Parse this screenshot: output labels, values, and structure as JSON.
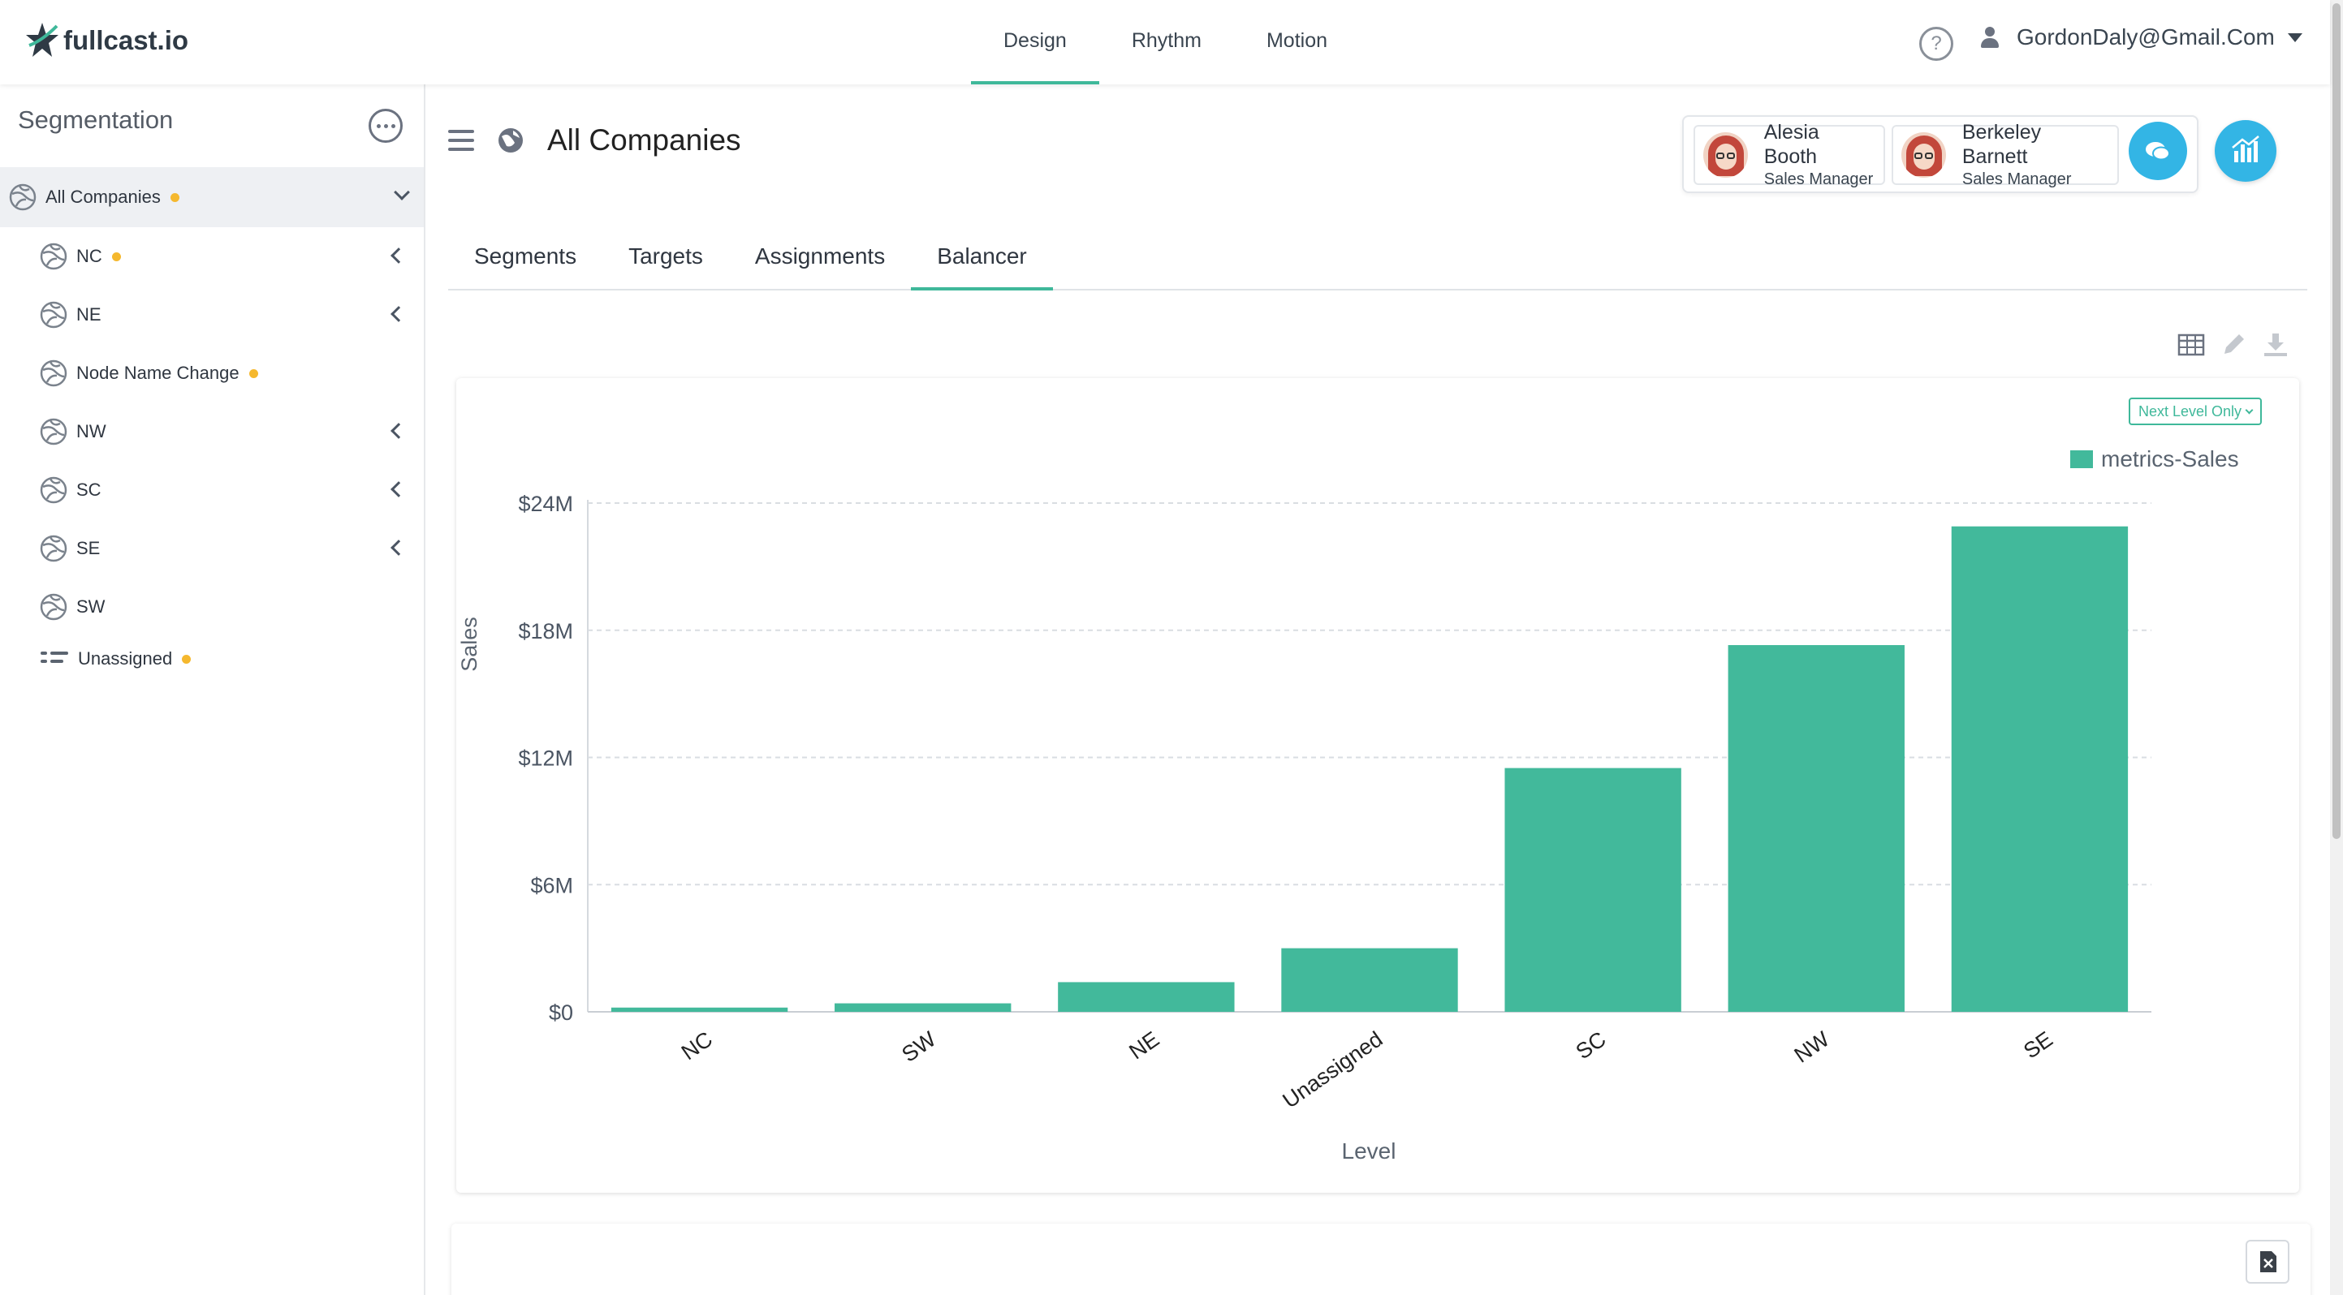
{
  "app": {
    "logo_text": "fullcast.io"
  },
  "topnav": {
    "items": [
      "Design",
      "Rhythm",
      "Motion"
    ],
    "active": "Design"
  },
  "user": {
    "email": "GordonDaly@Gmail.Com",
    "help_glyph": "?"
  },
  "sidebar": {
    "title": "Segmentation",
    "root": {
      "label": "All Companies"
    },
    "items": [
      {
        "label": "NC"
      },
      {
        "label": "NE"
      },
      {
        "label": "Node Name Change"
      },
      {
        "label": "NW"
      },
      {
        "label": "SC"
      },
      {
        "label": "SE"
      },
      {
        "label": "SW"
      },
      {
        "label": "Unassigned"
      }
    ]
  },
  "page": {
    "title": "All Companies"
  },
  "managers": [
    {
      "name": "Alesia Booth",
      "role": "Sales Manager"
    },
    {
      "name": "Berkeley Barnett",
      "role": "Sales Manager"
    }
  ],
  "tabs": [
    "Segments",
    "Targets",
    "Assignments",
    "Balancer"
  ],
  "active_tab": "Balancer",
  "chart_controls": {
    "level_filter": "Next Level Only"
  },
  "colors": {
    "accent": "#3fb89a",
    "bar": "#42b99b",
    "status_dot": "#f5b82e",
    "action_blue": "#33b5e5"
  },
  "icons": {
    "toolbar": [
      "table-view-icon",
      "edit-pencil-icon",
      "download-icon"
    ],
    "header": [
      "menu-icon",
      "globe-icon",
      "chat-icon",
      "analytics-icon"
    ],
    "footer": [
      "excel-export-icon"
    ]
  },
  "chart_data": {
    "type": "bar",
    "categories": [
      "NC",
      "SW",
      "NE",
      "Unassigned",
      "SC",
      "NW",
      "SE"
    ],
    "series": [
      {
        "name": "metrics-Sales",
        "values": [
          0.2,
          0.4,
          1.4,
          3.0,
          11.5,
          17.3,
          22.9
        ]
      }
    ],
    "value_unit": "millions USD",
    "xlabel": "Level",
    "ylabel": "Sales",
    "yticks": [
      "$0",
      "$6M",
      "$12M",
      "$18M",
      "$24M"
    ],
    "ylim": [
      0,
      24
    ],
    "grid": true,
    "legend": "top-right"
  }
}
